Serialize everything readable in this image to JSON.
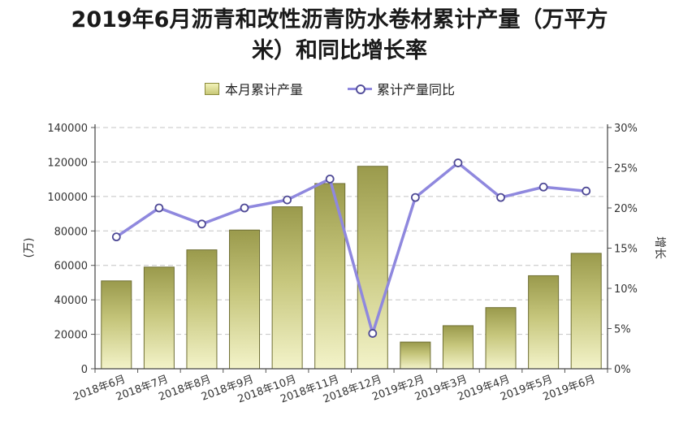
{
  "chart_data": {
    "type": "bar",
    "title": "2019年6月沥青和改性沥青防水卷材累计产量（万平方米）和同比增长率",
    "title_lines": [
      "2019年6月沥青和改性沥青防水卷材累计产量（万平方",
      "米）和同比增长率"
    ],
    "categories": [
      "2018年6月",
      "2018年7月",
      "2018年8月",
      "2018年9月",
      "2018年10月",
      "2018年11月",
      "2018年12月",
      "2019年2月",
      "2019年3月",
      "2019年4月",
      "2019年5月",
      "2019年6月"
    ],
    "series": [
      {
        "name": "本月累计产量",
        "type": "bar",
        "axis": "left",
        "color": "#c9c97a",
        "values": [
          51000,
          59000,
          69000,
          80500,
          94000,
          107500,
          117500,
          15500,
          25000,
          35500,
          54000,
          67000
        ]
      },
      {
        "name": "累计产量同比",
        "type": "line",
        "axis": "right",
        "color": "#8f88de",
        "values": [
          16.4,
          20.0,
          18.0,
          20.0,
          21.0,
          23.6,
          4.4,
          21.3,
          25.6,
          21.3,
          22.6,
          22.1
        ]
      }
    ],
    "ylabel_left": "(万)",
    "ylabel_right": "增长",
    "ylim_left": [
      0,
      140000
    ],
    "yticks_left": [
      "0",
      "20000",
      "40000",
      "60000",
      "80000",
      "100000",
      "120000",
      "140000"
    ],
    "ylim_right": [
      0,
      30
    ],
    "yticks_right": [
      "0%",
      "5%",
      "10%",
      "15%",
      "20%",
      "25%",
      "30%"
    ],
    "grid": true,
    "legend_position": "top"
  }
}
